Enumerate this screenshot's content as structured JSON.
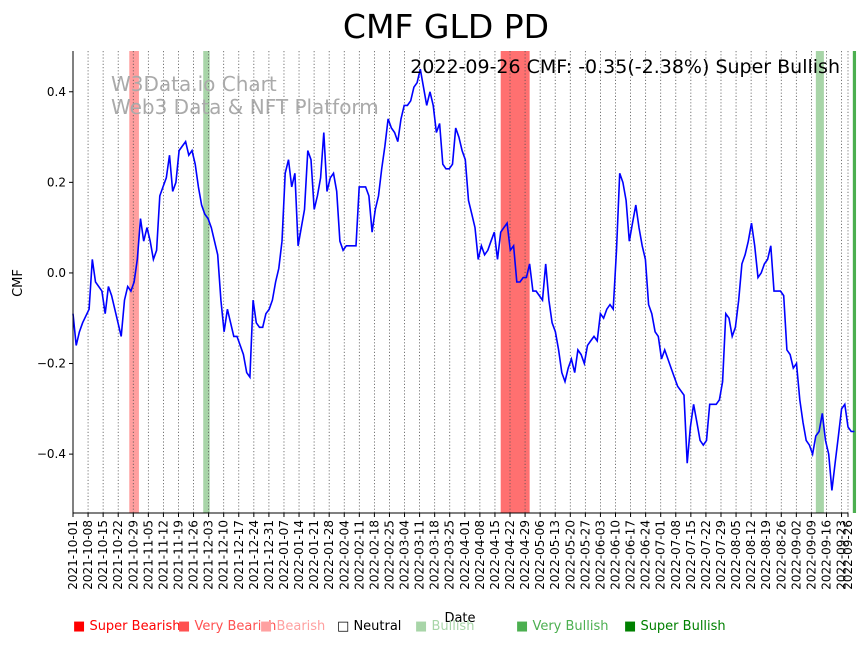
{
  "chart_data": {
    "type": "line",
    "title": "CMF GLD PD",
    "annotation": "2022-09-26 CMF: -0.35(-2.38%) Super Bullish",
    "watermark": [
      "W3Data.io Chart",
      "Web3 Data & NFT Platform"
    ],
    "xlabel": "Date",
    "ylabel": "CMF",
    "ylim": [
      -0.53,
      0.49
    ],
    "yticks": [
      0.4,
      0.2,
      0.0,
      -0.2,
      -0.4
    ],
    "ytick_labels": [
      "0.4",
      "0.2",
      "0.0",
      "−0.2",
      "−0.4"
    ],
    "x_start": "2021-10-01",
    "x_end": "2022-09-26",
    "xtick_labels": [
      "2021-10-01",
      "2021-10-08",
      "2021-10-15",
      "2021-10-22",
      "2021-10-29",
      "2021-11-05",
      "2021-11-12",
      "2021-11-19",
      "2021-11-26",
      "2021-12-03",
      "2021-12-10",
      "2021-12-17",
      "2021-12-24",
      "2021-12-31",
      "2022-01-07",
      "2022-01-14",
      "2022-01-21",
      "2022-01-28",
      "2022-02-04",
      "2022-02-11",
      "2022-02-18",
      "2022-02-25",
      "2022-03-04",
      "2022-03-11",
      "2022-03-18",
      "2022-03-25",
      "2022-04-01",
      "2022-04-08",
      "2022-04-15",
      "2022-04-22",
      "2022-04-29",
      "2022-05-06",
      "2022-05-13",
      "2022-05-20",
      "2022-05-27",
      "2022-06-03",
      "2022-06-10",
      "2022-06-17",
      "2022-06-24",
      "2022-07-01",
      "2022-07-08",
      "2022-07-15",
      "2022-07-22",
      "2022-07-29",
      "2022-08-05",
      "2022-08-12",
      "2022-08-19",
      "2022-08-26",
      "2022-09-02",
      "2022-09-09",
      "2022-09-16",
      "2022-09-23",
      "2022-09-26"
    ],
    "line_color": "#0000ff",
    "series": [
      {
        "name": "CMF",
        "points": [
          [
            0,
            -0.09
          ],
          [
            1,
            -0.16
          ],
          [
            2,
            -0.13
          ],
          [
            3,
            -0.11
          ],
          [
            5,
            -0.08
          ],
          [
            6,
            0.03
          ],
          [
            7,
            -0.02
          ],
          [
            9,
            -0.04
          ],
          [
            10,
            -0.09
          ],
          [
            11,
            -0.03
          ],
          [
            12,
            -0.05
          ],
          [
            13,
            -0.08
          ],
          [
            14,
            -0.11
          ],
          [
            15,
            -0.14
          ],
          [
            16,
            -0.06
          ],
          [
            17,
            -0.03
          ],
          [
            18,
            -0.04
          ],
          [
            19,
            -0.02
          ],
          [
            20,
            0.03
          ],
          [
            21,
            0.12
          ],
          [
            22,
            0.07
          ],
          [
            23,
            0.1
          ],
          [
            24,
            0.07
          ],
          [
            25,
            0.03
          ],
          [
            26,
            0.05
          ],
          [
            27,
            0.17
          ],
          [
            28,
            0.19
          ],
          [
            29,
            0.21
          ],
          [
            30,
            0.26
          ],
          [
            31,
            0.18
          ],
          [
            32,
            0.2
          ],
          [
            33,
            0.27
          ],
          [
            34,
            0.28
          ],
          [
            35,
            0.29
          ],
          [
            36,
            0.26
          ],
          [
            37,
            0.27
          ],
          [
            38,
            0.24
          ],
          [
            39,
            0.19
          ],
          [
            40,
            0.15
          ],
          [
            41,
            0.13
          ],
          [
            42,
            0.12
          ],
          [
            43,
            0.1
          ],
          [
            44,
            0.07
          ],
          [
            45,
            0.04
          ],
          [
            46,
            -0.06
          ],
          [
            47,
            -0.13
          ],
          [
            48,
            -0.08
          ],
          [
            49,
            -0.11
          ],
          [
            50,
            -0.14
          ],
          [
            51,
            -0.14
          ],
          [
            52,
            -0.16
          ],
          [
            53,
            -0.18
          ],
          [
            54,
            -0.22
          ],
          [
            55,
            -0.23
          ],
          [
            56,
            -0.06
          ],
          [
            57,
            -0.11
          ],
          [
            58,
            -0.12
          ],
          [
            59,
            -0.12
          ],
          [
            60,
            -0.09
          ],
          [
            61,
            -0.08
          ],
          [
            62,
            -0.06
          ],
          [
            63,
            -0.02
          ],
          [
            64,
            0.01
          ],
          [
            65,
            0.07
          ],
          [
            66,
            0.22
          ],
          [
            67,
            0.25
          ],
          [
            68,
            0.19
          ],
          [
            69,
            0.22
          ],
          [
            70,
            0.06
          ],
          [
            71,
            0.1
          ],
          [
            72,
            0.14
          ],
          [
            73,
            0.27
          ],
          [
            74,
            0.25
          ],
          [
            75,
            0.14
          ],
          [
            76,
            0.17
          ],
          [
            77,
            0.21
          ],
          [
            78,
            0.31
          ],
          [
            79,
            0.18
          ],
          [
            80,
            0.21
          ],
          [
            81,
            0.22
          ],
          [
            82,
            0.18
          ],
          [
            83,
            0.07
          ],
          [
            84,
            0.05
          ],
          [
            85,
            0.06
          ],
          [
            86,
            0.06
          ],
          [
            87,
            0.06
          ],
          [
            88,
            0.06
          ],
          [
            89,
            0.19
          ],
          [
            90,
            0.19
          ],
          [
            91,
            0.19
          ],
          [
            92,
            0.17
          ],
          [
            93,
            0.09
          ],
          [
            94,
            0.14
          ],
          [
            95,
            0.17
          ],
          [
            96,
            0.23
          ],
          [
            97,
            0.28
          ],
          [
            98,
            0.34
          ],
          [
            99,
            0.32
          ],
          [
            100,
            0.31
          ],
          [
            101,
            0.29
          ],
          [
            102,
            0.34
          ],
          [
            103,
            0.37
          ],
          [
            104,
            0.37
          ],
          [
            105,
            0.38
          ],
          [
            106,
            0.41
          ],
          [
            107,
            0.42
          ],
          [
            108,
            0.45
          ],
          [
            109,
            0.41
          ],
          [
            110,
            0.37
          ],
          [
            111,
            0.4
          ],
          [
            112,
            0.37
          ],
          [
            113,
            0.31
          ],
          [
            114,
            0.33
          ],
          [
            115,
            0.24
          ],
          [
            116,
            0.23
          ],
          [
            117,
            0.23
          ],
          [
            118,
            0.24
          ],
          [
            119,
            0.32
          ],
          [
            120,
            0.3
          ],
          [
            121,
            0.27
          ],
          [
            122,
            0.25
          ],
          [
            123,
            0.16
          ],
          [
            124,
            0.13
          ],
          [
            125,
            0.1
          ],
          [
            126,
            0.03
          ],
          [
            127,
            0.06
          ],
          [
            128,
            0.04
          ],
          [
            129,
            0.05
          ],
          [
            130,
            0.07
          ],
          [
            131,
            0.09
          ],
          [
            132,
            0.03
          ],
          [
            133,
            0.09
          ],
          [
            134,
            0.1
          ],
          [
            135,
            0.11
          ],
          [
            136,
            0.05
          ],
          [
            137,
            0.06
          ],
          [
            138,
            -0.02
          ],
          [
            139,
            -0.02
          ],
          [
            140,
            -0.01
          ],
          [
            141,
            -0.01
          ],
          [
            142,
            0.02
          ],
          [
            143,
            -0.04
          ],
          [
            144,
            -0.04
          ],
          [
            145,
            -0.05
          ],
          [
            146,
            -0.06
          ],
          [
            147,
            0.02
          ],
          [
            148,
            -0.06
          ],
          [
            149,
            -0.11
          ],
          [
            150,
            -0.13
          ],
          [
            151,
            -0.17
          ],
          [
            152,
            -0.22
          ],
          [
            153,
            -0.24
          ],
          [
            154,
            -0.21
          ],
          [
            155,
            -0.19
          ],
          [
            156,
            -0.22
          ],
          [
            157,
            -0.17
          ],
          [
            158,
            -0.18
          ],
          [
            159,
            -0.2
          ],
          [
            160,
            -0.16
          ],
          [
            161,
            -0.15
          ],
          [
            162,
            -0.14
          ],
          [
            163,
            -0.15
          ],
          [
            164,
            -0.09
          ],
          [
            165,
            -0.1
          ],
          [
            166,
            -0.08
          ],
          [
            167,
            -0.07
          ],
          [
            168,
            -0.08
          ],
          [
            169,
            0.05
          ],
          [
            170,
            0.22
          ],
          [
            171,
            0.2
          ],
          [
            172,
            0.16
          ],
          [
            173,
            0.07
          ],
          [
            174,
            0.11
          ],
          [
            175,
            0.15
          ],
          [
            176,
            0.1
          ],
          [
            177,
            0.06
          ],
          [
            178,
            0.03
          ],
          [
            179,
            -0.07
          ],
          [
            180,
            -0.09
          ],
          [
            181,
            -0.13
          ],
          [
            182,
            -0.14
          ],
          [
            183,
            -0.19
          ],
          [
            184,
            -0.17
          ],
          [
            185,
            -0.19
          ],
          [
            186,
            -0.21
          ],
          [
            187,
            -0.23
          ],
          [
            188,
            -0.25
          ],
          [
            189,
            -0.26
          ],
          [
            190,
            -0.27
          ],
          [
            191,
            -0.42
          ],
          [
            192,
            -0.34
          ],
          [
            193,
            -0.29
          ],
          [
            194,
            -0.33
          ],
          [
            195,
            -0.37
          ],
          [
            196,
            -0.38
          ],
          [
            197,
            -0.37
          ],
          [
            198,
            -0.29
          ],
          [
            199,
            -0.29
          ],
          [
            200,
            -0.29
          ],
          [
            201,
            -0.28
          ],
          [
            202,
            -0.24
          ],
          [
            203,
            -0.09
          ],
          [
            204,
            -0.1
          ],
          [
            205,
            -0.14
          ],
          [
            206,
            -0.12
          ],
          [
            207,
            -0.06
          ],
          [
            208,
            0.02
          ],
          [
            209,
            0.04
          ],
          [
            210,
            0.07
          ],
          [
            211,
            0.11
          ],
          [
            212,
            0.06
          ],
          [
            213,
            -0.01
          ],
          [
            214,
            0.0
          ],
          [
            215,
            0.02
          ],
          [
            216,
            0.03
          ],
          [
            217,
            0.06
          ],
          [
            218,
            -0.04
          ],
          [
            219,
            -0.04
          ],
          [
            220,
            -0.04
          ],
          [
            221,
            -0.05
          ],
          [
            222,
            -0.17
          ],
          [
            223,
            -0.18
          ],
          [
            224,
            -0.21
          ],
          [
            225,
            -0.2
          ],
          [
            226,
            -0.28
          ],
          [
            227,
            -0.33
          ],
          [
            228,
            -0.37
          ],
          [
            229,
            -0.38
          ],
          [
            230,
            -0.4
          ],
          [
            231,
            -0.36
          ],
          [
            232,
            -0.35
          ],
          [
            233,
            -0.31
          ],
          [
            234,
            -0.37
          ],
          [
            235,
            -0.4
          ],
          [
            236,
            -0.48
          ],
          [
            237,
            -0.42
          ],
          [
            238,
            -0.36
          ],
          [
            239,
            -0.3
          ],
          [
            240,
            -0.29
          ],
          [
            241,
            -0.34
          ],
          [
            242,
            -0.35
          ],
          [
            243,
            -0.35
          ]
        ]
      }
    ],
    "bands": [
      {
        "category": "bearish",
        "from": 17.5,
        "to": 20.5,
        "color": "#ff9f9f"
      },
      {
        "category": "bullish",
        "from": 40.5,
        "to": 42.5,
        "color": "#a8d5a8"
      },
      {
        "category": "very-bearish",
        "from": 133,
        "to": 142,
        "color": "#ff7070"
      },
      {
        "category": "bullish",
        "from": 231,
        "to": 233.5,
        "color": "#a8d5a8"
      },
      {
        "category": "super-bullish",
        "from": 242.5,
        "to": 243.5,
        "color": "#4caf50"
      }
    ],
    "legend": [
      {
        "label": "Super Bearish",
        "color": "#ff0000",
        "marker": "■"
      },
      {
        "label": "Very Bearish",
        "color": "#ff5050",
        "marker": "■"
      },
      {
        "label": "Bearish",
        "color": "#ffa0a0",
        "marker": "■"
      },
      {
        "label": "Neutral",
        "color": "#000000",
        "marker": "□"
      },
      {
        "label": "Bullish",
        "color": "#a8d5a8",
        "marker": "■"
      },
      {
        "label": "Very Bullish",
        "color": "#4caf50",
        "marker": "■"
      },
      {
        "label": "Super Bullish",
        "color": "#008000",
        "marker": "■"
      }
    ]
  }
}
